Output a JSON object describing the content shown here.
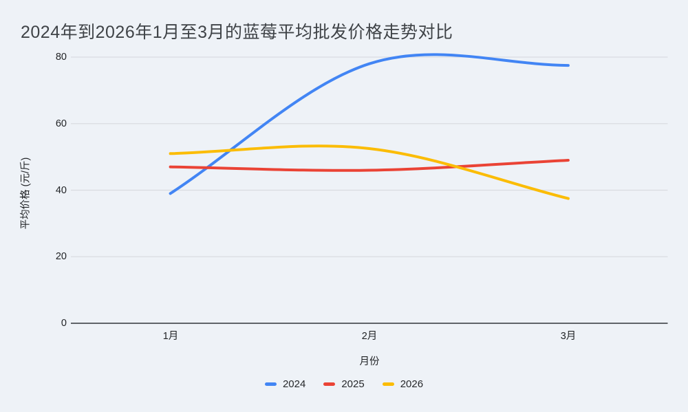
{
  "title": "2024年到2026年1月至3月的蓝莓平均批发价格走势对比",
  "chart_data": {
    "type": "line",
    "smooth": true,
    "categories": [
      "1月",
      "2月",
      "3月"
    ],
    "series": [
      {
        "name": "2024",
        "color": "#4285f4",
        "values": [
          39,
          78,
          77.5
        ]
      },
      {
        "name": "2025",
        "color": "#ea4335",
        "values": [
          47,
          46,
          49
        ]
      },
      {
        "name": "2026",
        "color": "#fbbc04",
        "values": [
          51,
          52.5,
          37.5
        ]
      }
    ],
    "title": "2024年到2026年1月至3月的蓝莓平均批发价格走势对比",
    "xlabel": "月份",
    "ylabel": "平均价格 (元/斤)",
    "ylim": [
      0,
      80
    ],
    "yticks": [
      0,
      20,
      40,
      60,
      80
    ],
    "grid": "horizontal",
    "legend_position": "bottom",
    "colors": {
      "background": "#eef2f7",
      "gridline": "#d9dce1",
      "axis_line": "#5f6368",
      "text": "#1f2124",
      "title_text": "#3f4347"
    }
  }
}
